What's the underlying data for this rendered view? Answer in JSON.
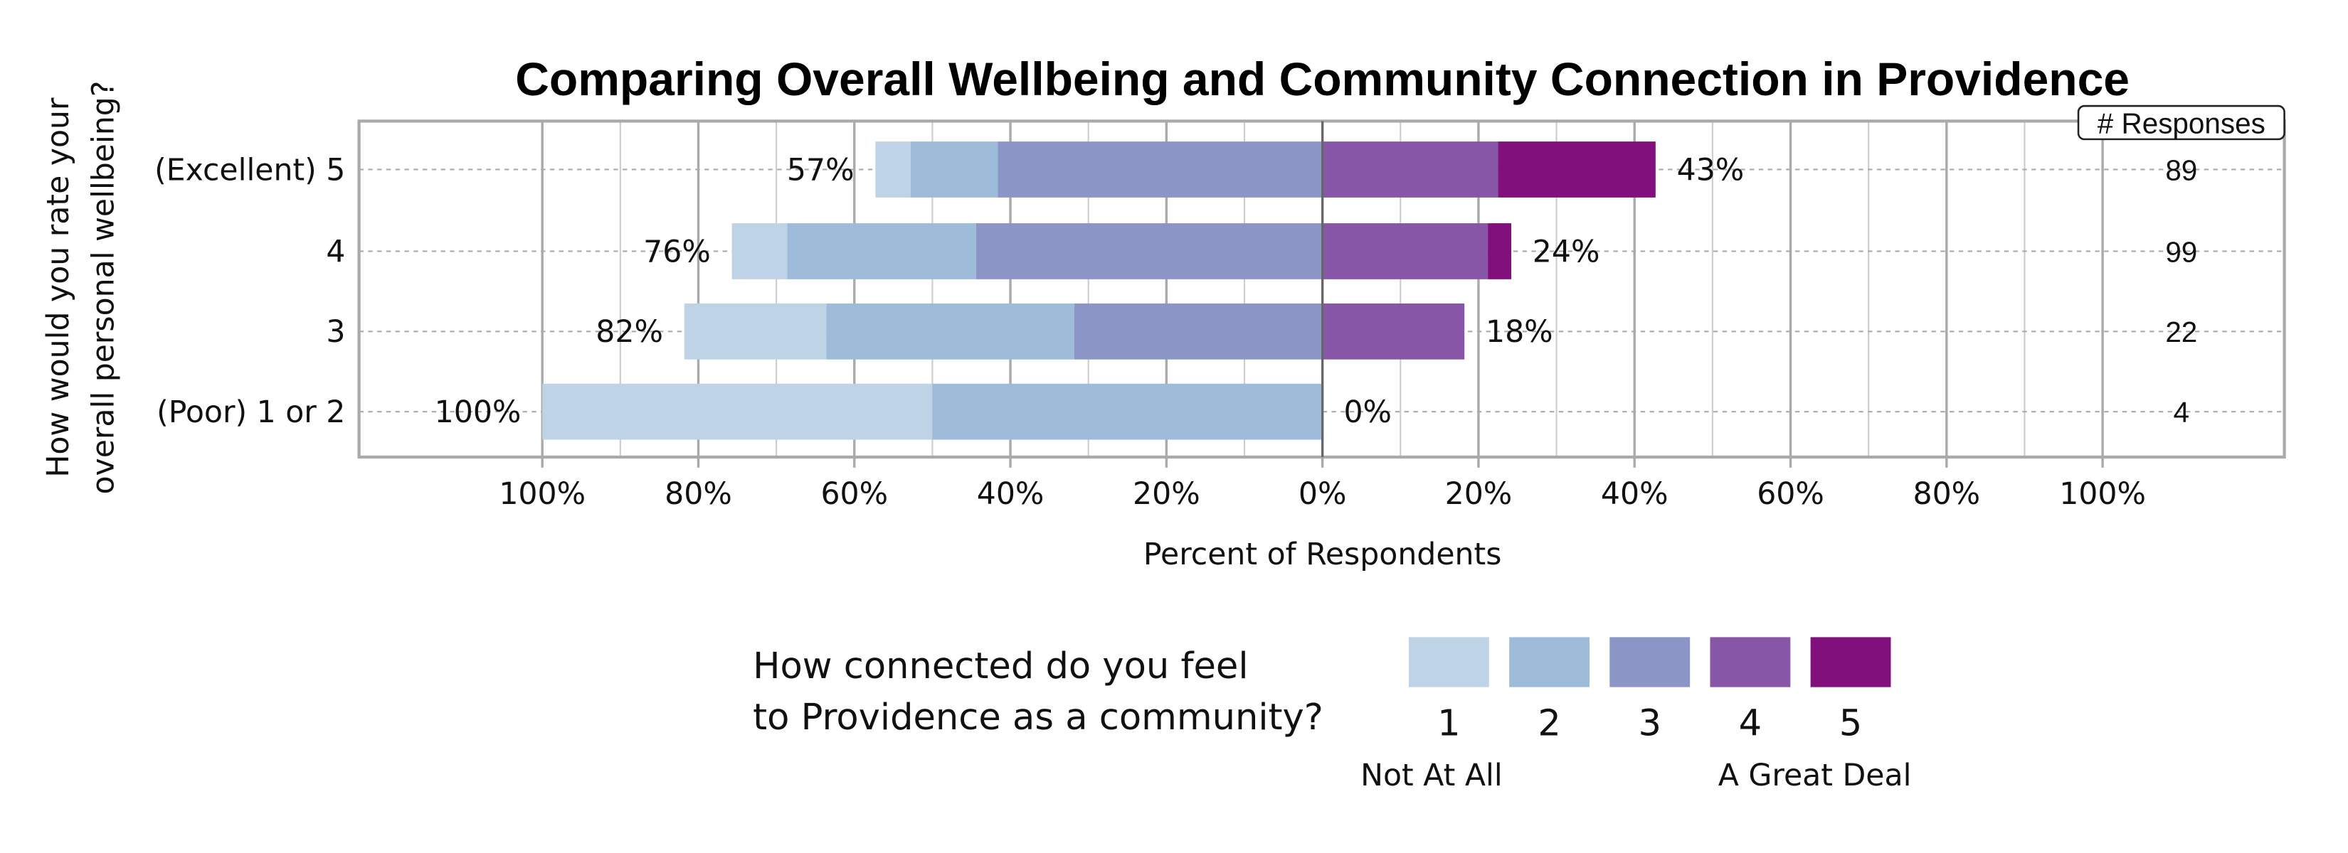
{
  "chart_data": {
    "type": "bar",
    "orientation": "horizontal",
    "stacking": "diverging",
    "title": "Comparing Overall Wellbeing and Community Connection in Providence",
    "xlabel": "Percent of Respondents",
    "ylabel": [
      "How would you rate your",
      "overall personal wellbeing?"
    ],
    "xlim": [
      -100,
      100
    ],
    "x_ticks": [
      "100%",
      "80%",
      "60%",
      "40%",
      "20%",
      "0%",
      "20%",
      "40%",
      "60%",
      "80%",
      "100%"
    ],
    "grid": true,
    "categories": [
      "(Excellent) 5",
      "4",
      "3",
      "(Poor) 1 or 2"
    ],
    "series": [
      {
        "name": "1",
        "color": "#bfd3e6",
        "values": [
          4.5,
          7.1,
          18.2,
          50.0
        ]
      },
      {
        "name": "2",
        "color": "#9ebcda",
        "values": [
          11.2,
          24.2,
          31.8,
          50.0
        ]
      },
      {
        "name": "3",
        "color": "#8c96c6",
        "values": [
          41.6,
          44.4,
          31.8,
          0
        ]
      },
      {
        "name": "4",
        "color": "#8856a7",
        "values": [
          22.5,
          21.2,
          18.2,
          0
        ]
      },
      {
        "name": "5",
        "color": "#810f7c",
        "values": [
          20.2,
          3.0,
          0,
          0
        ]
      }
    ],
    "left_labels": [
      "57%",
      "76%",
      "82%",
      "100%"
    ],
    "right_labels": [
      "43%",
      "24%",
      "18%",
      "0%"
    ],
    "responses_header": "# Responses",
    "responses": [
      "89",
      "99",
      "22",
      "4"
    ],
    "legend": {
      "title": [
        "How connected do you feel",
        "to Providence as a community?"
      ],
      "placement": "bottom",
      "low_label": "Not At All",
      "high_label": "A Great Deal"
    }
  }
}
